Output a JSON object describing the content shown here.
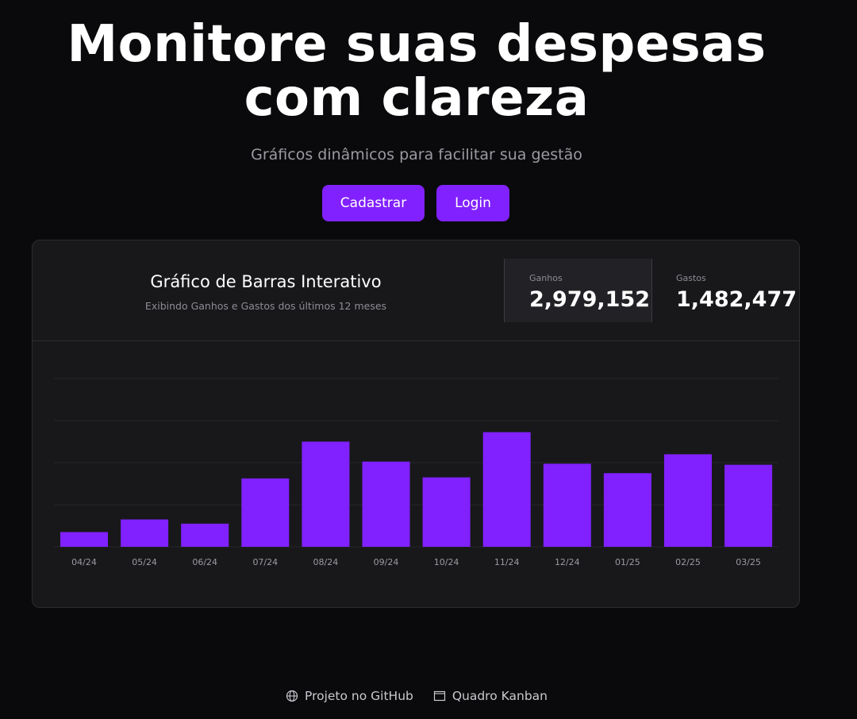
{
  "hero": {
    "title_line1": "Monitore suas despesas",
    "title_line2": "com clareza",
    "subtitle": "Gráficos dinâmicos para facilitar sua gestão"
  },
  "actions": {
    "register_label": "Cadastrar",
    "login_label": "Login"
  },
  "card": {
    "title": "Gráfico de Barras Interativo",
    "description": "Exibindo Ganhos e Gastos dos últimos 12 meses",
    "stats": {
      "gains_label": "Ganhos",
      "gains_value": "2,979,152",
      "expenses_label": "Gastos",
      "expenses_value": "1,482,477"
    }
  },
  "footer": {
    "github_label": "Projeto no GitHub",
    "kanban_label": "Quadro Kanban",
    "github_icon": "globe-icon",
    "kanban_icon": "window-icon"
  },
  "colors": {
    "accent": "#8121ff",
    "background": "#0a0a0c",
    "card": "#18181b"
  },
  "chart_data": {
    "type": "bar",
    "categories": [
      "04/24",
      "05/24",
      "06/24",
      "07/24",
      "08/24",
      "09/24",
      "10/24",
      "11/24",
      "12/24",
      "01/25",
      "02/25",
      "03/25"
    ],
    "series": [
      {
        "values": [
          70,
          130,
          110,
          325,
          500,
          405,
          330,
          545,
          395,
          350,
          440,
          390
        ]
      }
    ],
    "ylim": [
      0,
      800
    ],
    "grid": true,
    "xlabel": "",
    "ylabel": ""
  }
}
